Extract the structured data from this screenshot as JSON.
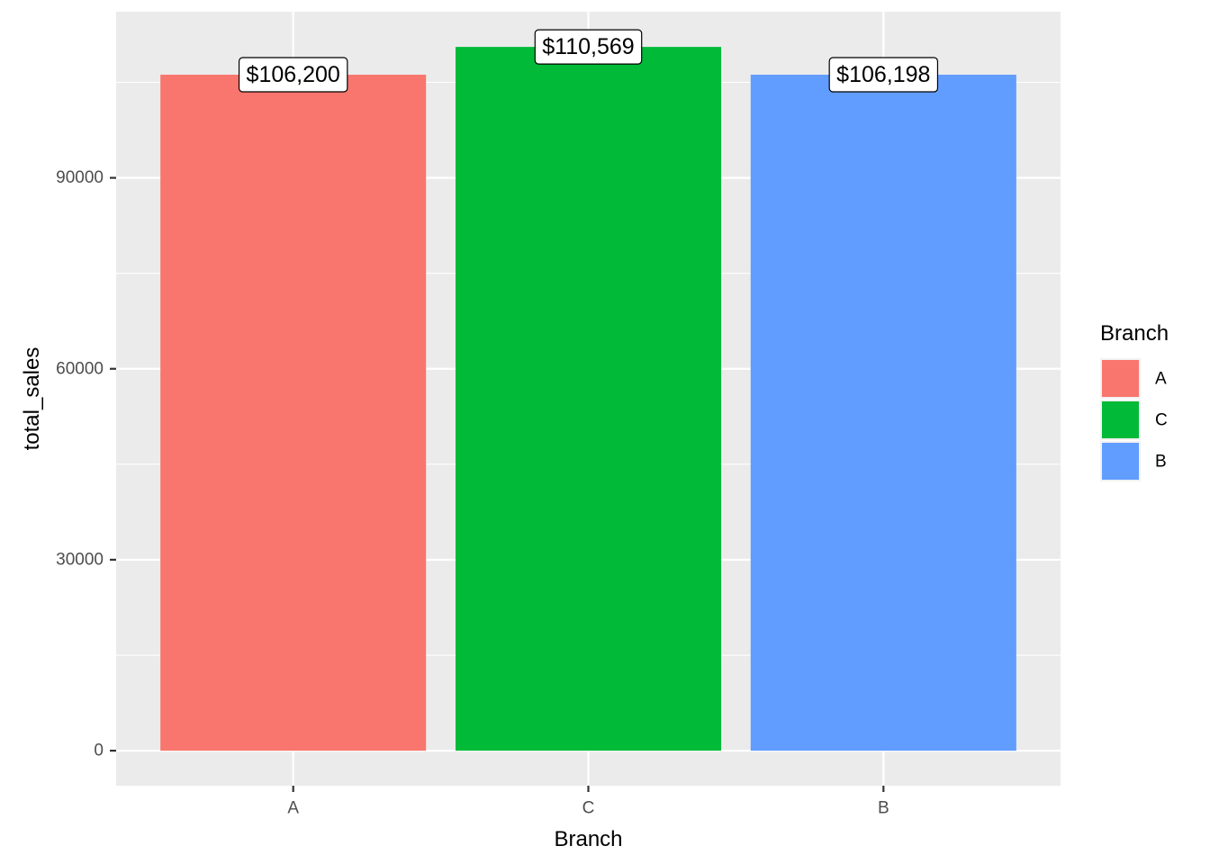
{
  "chart_data": {
    "type": "bar",
    "title": "",
    "xlabel": "Branch",
    "ylabel": "total_sales",
    "categories": [
      "A",
      "C",
      "B"
    ],
    "values": [
      106200,
      110569,
      106198
    ],
    "data_labels": [
      "$106,200",
      "$110,569",
      "$106,198"
    ],
    "colors": [
      "#F8766D",
      "#00BA38",
      "#619CFF"
    ],
    "ylim": [
      -5500,
      116100
    ],
    "yticks": [
      0,
      30000,
      60000,
      90000
    ],
    "ytick_labels": [
      "0",
      "30000",
      "60000",
      "90000"
    ],
    "grid": true,
    "legend": {
      "title": "Branch",
      "position": "right",
      "entries": [
        {
          "label": "A",
          "color": "#F8766D"
        },
        {
          "label": "C",
          "color": "#00BA38"
        },
        {
          "label": "B",
          "color": "#619CFF"
        }
      ]
    }
  }
}
